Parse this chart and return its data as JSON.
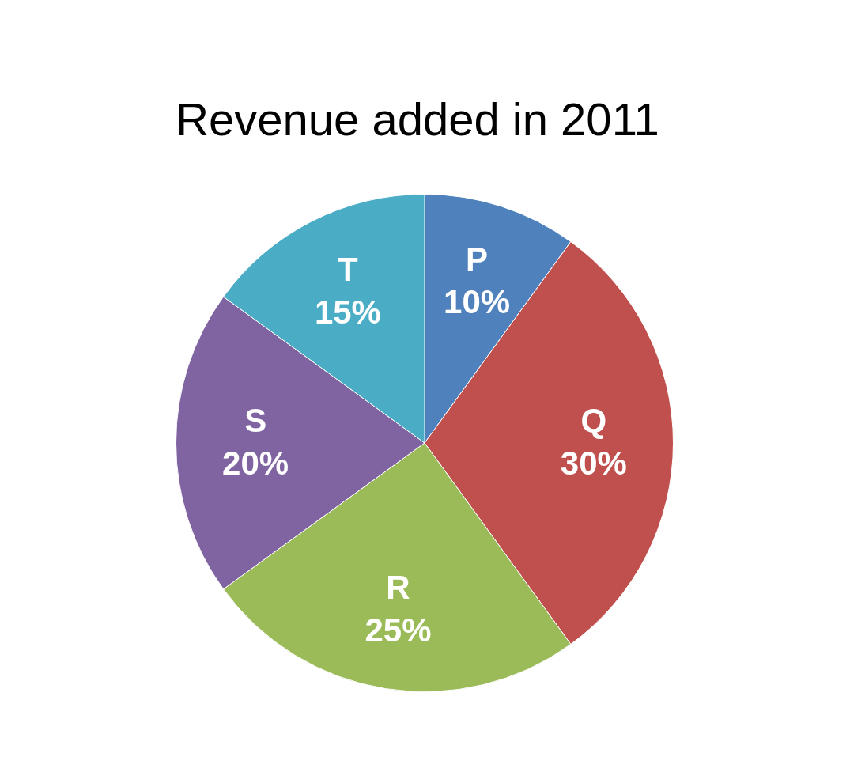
{
  "chart_data": {
    "type": "pie",
    "title": "Revenue added in 2011",
    "categories": [
      "P",
      "Q",
      "R",
      "S",
      "T"
    ],
    "values": [
      10,
      30,
      25,
      20,
      15
    ],
    "colors": [
      "#4f81bd",
      "#c0504d",
      "#9bbb59",
      "#8064a2",
      "#4bacc6"
    ],
    "value_labels": [
      "10%",
      "30%",
      "25%",
      "20%",
      "15%"
    ],
    "legend": false
  }
}
